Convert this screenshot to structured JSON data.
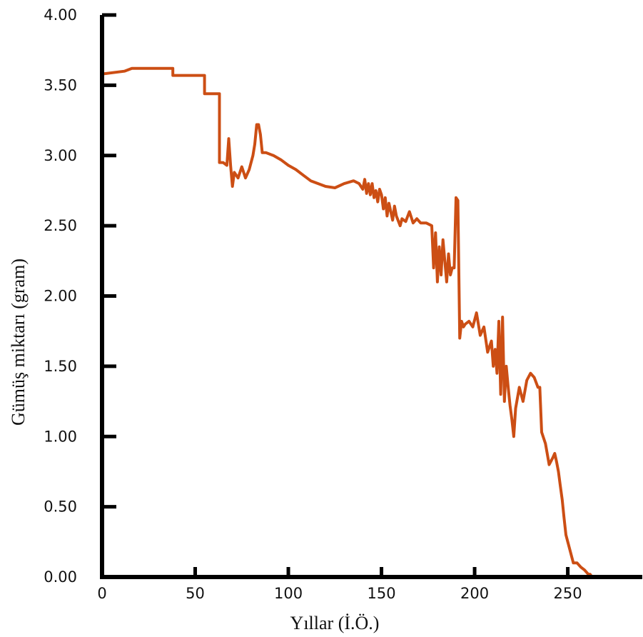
{
  "chart_data": {
    "type": "line",
    "title": "",
    "xlabel": "Yıllar (İ.Ö.)",
    "ylabel": "Gümüş miktarı (gram)",
    "xlim": [
      0,
      290
    ],
    "ylim": [
      0,
      4.0
    ],
    "x_ticks": [
      "0",
      "50",
      "100",
      "150",
      "200",
      "250"
    ],
    "y_ticks": [
      "0.00",
      "0.50",
      "1.00",
      "1.50",
      "2.00",
      "2.50",
      "3.00",
      "3.50",
      "4.00"
    ],
    "grid": false,
    "line_color": "#cc4e14",
    "series": [
      {
        "x": [
          0,
          12,
          16,
          38,
          38,
          55,
          55,
          63,
          63,
          65,
          67,
          68,
          69,
          70,
          71,
          73,
          75,
          77,
          79,
          81,
          82,
          83,
          84,
          85,
          86,
          88,
          92,
          96,
          100,
          104,
          108,
          112,
          116,
          120,
          125,
          130,
          135,
          138,
          140,
          141,
          142,
          143,
          144,
          145,
          146,
          147,
          148,
          149,
          150,
          151,
          152,
          153,
          154,
          155,
          156,
          157,
          158,
          160,
          161,
          163,
          165,
          167,
          169,
          171,
          174,
          177,
          178,
          179,
          180,
          181,
          182,
          183,
          184,
          185,
          186,
          187,
          188,
          189,
          190,
          191,
          192,
          193,
          194,
          195,
          197,
          199,
          201,
          203,
          205,
          207,
          209,
          210,
          211,
          212,
          213,
          214,
          215,
          216,
          217,
          218,
          219,
          220,
          221,
          222,
          224,
          226,
          228,
          230,
          232,
          234,
          235,
          236,
          238,
          240,
          242,
          243,
          244,
          245,
          246,
          247,
          248,
          249,
          250,
          251,
          252,
          253,
          255,
          257,
          259,
          261,
          262,
          263
        ],
        "y": [
          3.58,
          3.6,
          3.62,
          3.62,
          3.57,
          3.57,
          3.44,
          3.44,
          2.95,
          2.95,
          2.93,
          3.12,
          2.93,
          2.78,
          2.88,
          2.84,
          2.92,
          2.84,
          2.9,
          3.0,
          3.08,
          3.22,
          3.22,
          3.15,
          3.02,
          3.02,
          3.0,
          2.97,
          2.93,
          2.9,
          2.86,
          2.82,
          2.8,
          2.78,
          2.77,
          2.8,
          2.82,
          2.8,
          2.76,
          2.83,
          2.73,
          2.8,
          2.72,
          2.8,
          2.7,
          2.75,
          2.67,
          2.76,
          2.72,
          2.62,
          2.7,
          2.57,
          2.66,
          2.6,
          2.54,
          2.64,
          2.57,
          2.5,
          2.55,
          2.53,
          2.6,
          2.52,
          2.55,
          2.52,
          2.52,
          2.5,
          2.2,
          2.45,
          2.1,
          2.35,
          2.15,
          2.4,
          2.25,
          2.1,
          2.3,
          2.15,
          2.2,
          2.2,
          2.7,
          2.68,
          1.7,
          1.82,
          1.78,
          1.8,
          1.82,
          1.78,
          1.88,
          1.72,
          1.78,
          1.6,
          1.68,
          1.5,
          1.62,
          1.45,
          1.82,
          1.3,
          1.85,
          1.25,
          1.5,
          1.35,
          1.22,
          1.12,
          1.0,
          1.2,
          1.35,
          1.25,
          1.4,
          1.45,
          1.42,
          1.35,
          1.35,
          1.03,
          0.95,
          0.8,
          0.85,
          0.88,
          0.82,
          0.75,
          0.65,
          0.55,
          0.42,
          0.3,
          0.25,
          0.2,
          0.15,
          0.1,
          0.1,
          0.07,
          0.05,
          0.02,
          0.02,
          0.0
        ]
      }
    ]
  }
}
